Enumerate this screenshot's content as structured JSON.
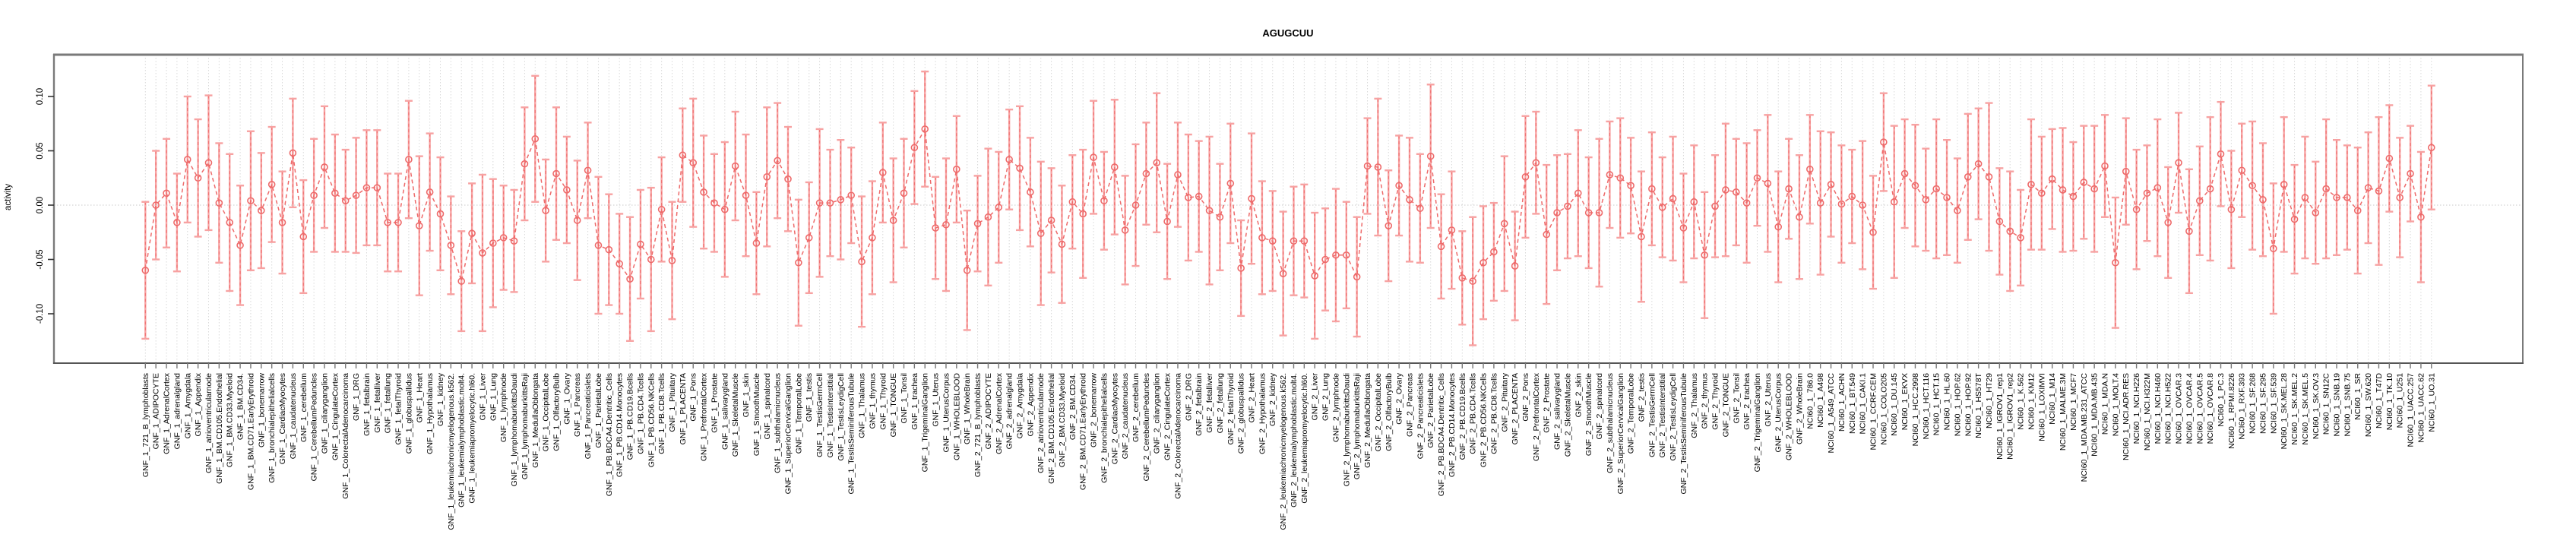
{
  "page_title": "AGUGCUU",
  "chart_data": {
    "type": "line",
    "title": "AGUGCUU",
    "xlabel": "",
    "ylabel": "activity",
    "ylim": [
      -0.13,
      0.135
    ],
    "yticks": [
      0.1,
      0.05,
      0.0,
      -0.05,
      -0.1
    ],
    "ytick_labels": [
      "0.10",
      "0.05",
      "0.00",
      "-0.05",
      "-0.10"
    ],
    "grid": "dotted vertical gridline at every category; dotted horizontal line at y=0",
    "legend_position": "none",
    "marker": "open-circle",
    "line_style": "dashed",
    "error_bars": true,
    "colors": {
      "point": "#ee6a6a",
      "line": "#ee6a6a",
      "error_bar": "#f7a2a2",
      "gridline": "#d9d9d9",
      "zero_line": "#c9c9c9",
      "box": "#7a7a7a",
      "axis_bottom": "#555555",
      "text": "#000000",
      "background": "#ffffff"
    },
    "categories": [
      "GNF_1_721_B_lymphoblasts",
      "GNF_1_ADIPOCYTE",
      "GNF_1_AdrenalCortex",
      "GNF_1_adrenalgland",
      "GNF_1_Amygdala",
      "GNF_1_Appendix",
      "GNF_1_atrioventricularnode",
      "GNF_1_BM.CD105.Endothelial",
      "GNF_1_BM.CD33.Myeloid",
      "GNF_1_BM.CD34.",
      "GNF_1_BM.CD71.EarlyErythroid",
      "GNF_1_bonemarrow",
      "GNF_1_bronchialepithelialcells",
      "GNF_1_CardiacMyocytes",
      "GNF_1_caudatenucleus",
      "GNF_1_cerebellum",
      "GNF_1_CerebellumPeduncles",
      "GNF_1_ciliaryganglion",
      "GNF_1_CingulateCortex",
      "GNF_1_ColorectalAdenocarcinoma",
      "GNF_1_DRG",
      "GNF_1_fetalbrain",
      "GNF_1_fetalliver",
      "GNF_1_fetallung",
      "GNF_1_fetalThyroid",
      "GNF_1_globuspallidus",
      "GNF_1_Heart",
      "GNF_1_Hypothalamus",
      "GNF_1_kidney",
      "GNF_1_leukemiachronicmyelogenous.k562.",
      "GNF_1_leukemialymphoblastic.molt4.",
      "GNF_1_leukemiapromyelocytic.hl60.",
      "GNF_1_Liver",
      "GNF_1_Lung",
      "GNF_1_lymphnode",
      "GNF_1_lymphomaburkittsDaudi",
      "GNF_1_lymphomaburkittsRaji",
      "GNF_1_MedullaOblongata",
      "GNF_1_OccipitalLobe",
      "GNF_1_OlfactoryBulb",
      "GNF_1_Ovary",
      "GNF_1_Pancreas",
      "GNF_1_Pancreaticislets",
      "GNF_1_ParietalLobe",
      "GNF_1_PB.BDCA4.Dentritic_Cells",
      "GNF_1_PB.CD14.Monocytes",
      "GNF_1_PB.CD19.Bcells",
      "GNF_1_PB.CD4.Tcells",
      "GNF_1_PB.CD56.NKCells",
      "GNF_1_PB.CD8.Tcells",
      "GNF_1_Pituitary",
      "GNF_1_PLACENTA",
      "GNF_1_Pons",
      "GNF_1_PrefrontalCortex",
      "GNF_1_Prostate",
      "GNF_1_salivarygland",
      "GNF_1_SkeletalMuscle",
      "GNF_1_skin",
      "GNF_1_SmoothMuscle",
      "GNF_1_spinalcord",
      "GNF_1_subthalamicnucleus",
      "GNF_1_SuperiorCervicalGanglion",
      "GNF_1_TemporalLobe",
      "GNF_1_testis",
      "GNF_1_TestisGermCell",
      "GNF_1_TestisInterstitial",
      "GNF_1_TestisLeydigCell",
      "GNF_1_TestisSeminiferousTubule",
      "GNF_1_Thalamus",
      "GNF_1_thymus",
      "GNF_1_Thyroid",
      "GNF_1_TONGUE",
      "GNF_1_Tonsil",
      "GNF_1_trachea",
      "GNF_1_TrigeminalGanglion",
      "GNF_1_Uterus",
      "GNF_1_UterusCorpus",
      "GNF_1_WHOLEBLOOD",
      "GNF_1_WholeBrain",
      "GNF_2_721_B_lymphoblasts",
      "GNF_2_ADIPOCYTE",
      "GNF_2_AdrenalCortex",
      "GNF_2_adrenalgland",
      "GNF_2_Amygdala",
      "GNF_2_Appendix",
      "GNF_2_atrioventricularnode",
      "GNF_2_BM.CD105.Endothelial",
      "GNF_2_BM.CD33.Myeloid",
      "GNF_2_BM.CD34.",
      "GNF_2_BM.CD71.EarlyErythroid",
      "GNF_2_bonemarrow",
      "GNF_2_bronchialepithelialcells",
      "GNF_2_CardiacMyocytes",
      "GNF_2_caudatenucleus",
      "GNF_2_cerebellum",
      "GNF_2_CerebellumPeduncles",
      "GNF_2_ciliaryganglion",
      "GNF_2_CingulateCortex",
      "GNF_2_ColorectalAdenocarcinoma",
      "GNF_2_DRG",
      "GNF_2_fetalbrain",
      "GNF_2_fetalliver",
      "GNF_2_fetallung",
      "GNF_2_fetalThyroid",
      "GNF_2_globuspallidus",
      "GNF_2_Heart",
      "GNF_2_Hypothalamus",
      "GNF_2_kidney",
      "GNF_2_leukemiachronicmyelogenous.k562.",
      "GNF_2_leukemialymphoblastic.molt4.",
      "GNF_2_leukemiapromyelocytic.hl60.",
      "GNF_2_Liver",
      "GNF_2_Lung",
      "GNF_2_lymphnode",
      "GNF_2_lymphomaburkittsDaudi",
      "GNF_2_lymphomaburkittsRaji",
      "GNF_2_MedullaOblongata",
      "GNF_2_OccipitalLobe",
      "GNF_2_OlfactoryBulb",
      "GNF_2_Ovary",
      "GNF_2_Pancreas",
      "GNF_2_Pancreaticislets",
      "GNF_2_ParietalLobe",
      "GNF_2_PB.BDCA4.Dentritic_Cells",
      "GNF_2_PB.CD14.Monocytes",
      "GNF_2_PB.CD19.Bcells",
      "GNF_2_PB.CD4.Tcells",
      "GNF_2_PB.CD56.NKCells",
      "GNF_2_PB.CD8.Tcells",
      "GNF_2_Pituitary",
      "GNF_2_PLACENTA",
      "GNF_2_Pons",
      "GNF_2_PrefrontalCortex",
      "GNF_2_Prostate",
      "GNF_2_salivarygland",
      "GNF_2_SkeletalMuscle",
      "GNF_2_skin",
      "GNF_2_SmoothMuscle",
      "GNF_2_spinalcord",
      "GNF_2_subthalamicnucleus",
      "GNF_2_SuperiorCervicalGanglion",
      "GNF_2_TemporalLobe",
      "GNF_2_testis",
      "GNF_2_TestisGermCell",
      "GNF_2_TestisInterstitial",
      "GNF_2_TestisLeydigCell",
      "GNF_2_TestisSeminiferousTubule",
      "GNF_2_Thalamus",
      "GNF_2_thymus",
      "GNF_2_Thyroid",
      "GNF_2_TONGUE",
      "GNF_2_Tonsil",
      "GNF_2_trachea",
      "GNF_2_TrigeminalGanglion",
      "GNF_2_Uterus",
      "GNF_2_UterusCorpus",
      "GNF_2_WHOLEBLOOD",
      "GNF_2_WholeBrain",
      "NCI60_1_786.0",
      "NCI60_1_A498",
      "NCI60_1_A549_ATCC",
      "NCI60_1_ACHN",
      "NCI60_1_BT.549",
      "NCI60_1_CAKI.1",
      "NCI60_1_CCRF.CEM",
      "NCI60_1_COLO205",
      "NCI60_1_DU.145",
      "NCI60_1_EKVX",
      "NCI60_1_HCC.2998",
      "NCI60_1_HCT.116",
      "NCI60_1_HCT.15",
      "NCI60_1_HL.60",
      "NCI60_1_HOP.62",
      "NCI60_1_HOP.92",
      "NCI60_1_HS578T",
      "NCI60_1_HT29",
      "NCI60_1_IGROV1_rep1",
      "NCI60_1_IGROV1_rep2",
      "NCI60_1_K.562",
      "NCI60_1_KM12",
      "NCI60_1_LOXIMVI",
      "NCI60_1_M14",
      "NCI60_1_MALME.3M",
      "NCI60_1_MCF7",
      "NCI60_1_MDA.MB.231_ATCC",
      "NCI60_1_MDA.MB.435",
      "NCI60_1_MDA.N",
      "NCI60_1_MOLT.4",
      "NCI60_1_NCI.ADR.RES",
      "NCI60_1_NCI.H226",
      "NCI60_1_NCI.H322M",
      "NCI60_1_NCI.H460",
      "NCI60_1_NCI.H522",
      "NCI60_1_OVCAR.3",
      "NCI60_1_OVCAR.4",
      "NCI60_1_OVCAR.5",
      "NCI60_1_OVCAR.8",
      "NCI60_1_PC.3",
      "NCI60_1_RPMI.8226",
      "NCI60_1_RXF.393",
      "NCI60_1_SF.268",
      "NCI60_1_SF.295",
      "NCI60_1_SF.539",
      "NCI60_1_SK.MEL.28",
      "NCI60_1_SK.MEL.2",
      "NCI60_1_SK.MEL.5",
      "NCI60_1_SK.OV.3",
      "NCI60_1_SN12C",
      "NCI60_1_SNB.19",
      "NCI60_1_SNB.75",
      "NCI60_1_SR",
      "NCI60_1_SW.620",
      "NCI60_1_T47D",
      "NCI60_1_TK.10",
      "NCI60_1_U251",
      "NCI60_1_UACC.257",
      "NCI60_1_UACC.62",
      "NCI60_1_UO.31"
    ],
    "series": [
      {
        "name": "activity",
        "values": [
          -0.06,
          0.0,
          0.011,
          -0.016,
          0.042,
          0.025,
          0.039,
          0.002,
          -0.016,
          -0.037,
          0.004,
          -0.005,
          0.019,
          -0.016,
          0.048,
          -0.029,
          0.009,
          0.035,
          0.011,
          0.004,
          0.009,
          0.016,
          0.016,
          -0.016,
          -0.016,
          0.042,
          -0.019,
          0.012,
          -0.008,
          -0.037,
          -0.07,
          -0.026,
          -0.044,
          -0.035,
          -0.03,
          -0.033,
          0.038,
          0.061,
          -0.005,
          0.029,
          0.014,
          -0.014,
          0.032,
          -0.037,
          -0.041,
          -0.054,
          -0.068,
          -0.036,
          -0.05,
          -0.004,
          -0.051,
          0.046,
          0.039,
          0.012,
          0.002,
          -0.004,
          0.036,
          0.009,
          -0.035,
          0.026,
          0.041,
          0.024,
          -0.053,
          -0.03,
          0.002,
          0.002,
          0.005,
          0.009,
          -0.052,
          -0.03,
          0.03,
          -0.014,
          0.011,
          0.053,
          0.07,
          -0.021,
          -0.018,
          0.033,
          -0.06,
          -0.017,
          -0.011,
          -0.002,
          0.042,
          0.034,
          0.012,
          -0.026,
          -0.014,
          -0.036,
          0.003,
          -0.008,
          0.044,
          0.004,
          0.035,
          -0.023,
          0.0,
          0.029,
          0.039,
          -0.015,
          0.028,
          0.007,
          0.008,
          -0.005,
          -0.011,
          0.02,
          -0.058,
          0.006,
          -0.03,
          -0.033,
          -0.063,
          -0.033,
          -0.033,
          -0.065,
          -0.05,
          -0.046,
          -0.046,
          -0.066,
          0.036,
          0.035,
          -0.019,
          0.018,
          0.005,
          -0.003,
          0.045,
          -0.038,
          -0.023,
          -0.067,
          -0.07,
          -0.053,
          -0.043,
          -0.017,
          -0.056,
          0.026,
          0.039,
          -0.027,
          -0.007,
          -0.001,
          0.011,
          -0.007,
          -0.007,
          0.028,
          0.025,
          0.018,
          -0.029,
          0.015,
          -0.002,
          0.006,
          -0.021,
          0.003,
          -0.046,
          -0.001,
          0.014,
          0.012,
          0.002,
          0.025,
          0.02,
          -0.02,
          0.015,
          -0.011,
          0.033,
          0.002,
          0.019,
          0.001,
          0.008,
          0.0,
          -0.025,
          0.058,
          0.003,
          0.029,
          0.018,
          0.005,
          0.015,
          0.007,
          -0.005,
          0.026,
          0.038,
          0.026,
          -0.015,
          -0.024,
          -0.03,
          0.019,
          0.011,
          0.024,
          0.014,
          0.008,
          0.021,
          0.015,
          0.036,
          -0.053,
          0.031,
          -0.004,
          0.011,
          0.016,
          -0.016,
          0.039,
          -0.024,
          0.004,
          0.015,
          0.047,
          -0.004,
          0.032,
          0.018,
          0.005,
          -0.04,
          0.019,
          -0.013,
          0.007,
          -0.007,
          0.015,
          0.007,
          0.007,
          -0.005,
          0.016,
          0.013,
          0.043,
          0.007,
          0.029,
          -0.011,
          0.053
        ],
        "err": [
          0.063,
          0.05,
          0.05,
          0.045,
          0.058,
          0.054,
          0.062,
          0.055,
          0.063,
          0.055,
          0.064,
          0.053,
          0.053,
          0.047,
          0.05,
          0.052,
          0.052,
          0.056,
          0.054,
          0.047,
          0.053,
          0.053,
          0.053,
          0.045,
          0.045,
          0.054,
          0.064,
          0.054,
          0.052,
          0.045,
          0.046,
          0.046,
          0.072,
          0.059,
          0.048,
          0.047,
          0.052,
          0.058,
          0.047,
          0.061,
          0.049,
          0.055,
          0.044,
          0.063,
          0.051,
          0.046,
          0.057,
          0.05,
          0.066,
          0.048,
          0.054,
          0.043,
          0.059,
          0.052,
          0.045,
          0.062,
          0.05,
          0.056,
          0.047,
          0.064,
          0.053,
          0.048,
          0.058,
          0.051,
          0.068,
          0.049,
          0.055,
          0.044,
          0.06,
          0.052,
          0.046,
          0.057,
          0.05,
          0.052,
          0.053,
          0.047,
          0.061,
          0.049,
          0.055,
          0.044,
          0.063,
          0.051,
          0.046,
          0.057,
          0.05,
          0.066,
          0.048,
          0.054,
          0.043,
          0.059,
          0.052,
          0.045,
          0.062,
          0.05,
          0.056,
          0.047,
          0.064,
          0.053,
          0.048,
          0.058,
          0.051,
          0.068,
          0.049,
          0.055,
          0.044,
          0.06,
          0.052,
          0.046,
          0.057,
          0.05,
          0.052,
          0.058,
          0.047,
          0.061,
          0.049,
          0.055,
          0.044,
          0.063,
          0.051,
          0.046,
          0.057,
          0.05,
          0.066,
          0.048,
          0.054,
          0.043,
          0.059,
          0.052,
          0.045,
          0.062,
          0.05,
          0.056,
          0.047,
          0.064,
          0.053,
          0.048,
          0.058,
          0.051,
          0.068,
          0.049,
          0.055,
          0.044,
          0.06,
          0.052,
          0.046,
          0.057,
          0.05,
          0.052,
          0.058,
          0.047,
          0.061,
          0.049,
          0.055,
          0.044,
          0.063,
          0.051,
          0.046,
          0.057,
          0.05,
          0.066,
          0.048,
          0.054,
          0.043,
          0.059,
          0.052,
          0.045,
          0.07,
          0.05,
          0.056,
          0.047,
          0.064,
          0.053,
          0.048,
          0.058,
          0.051,
          0.068,
          0.049,
          0.055,
          0.044,
          0.06,
          0.052,
          0.046,
          0.057,
          0.05,
          0.052,
          0.058,
          0.047,
          0.06,
          0.049,
          0.055,
          0.044,
          0.063,
          0.051,
          0.046,
          0.057,
          0.05,
          0.066,
          0.048,
          0.054,
          0.043,
          0.059,
          0.052,
          0.06,
          0.062,
          0.05,
          0.056,
          0.047,
          0.064,
          0.053,
          0.048,
          0.058,
          0.051,
          0.068,
          0.049,
          0.055,
          0.044,
          0.06,
          0.057
        ]
      }
    ]
  }
}
